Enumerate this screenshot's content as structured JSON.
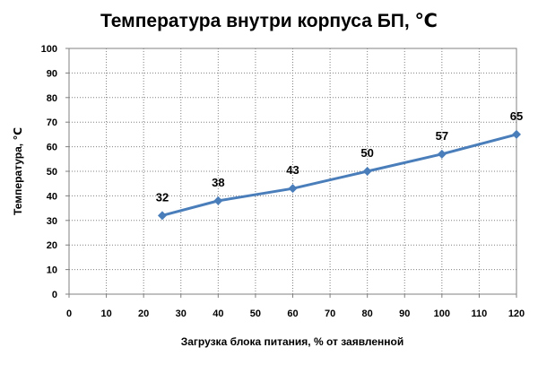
{
  "chart_data": {
    "type": "line",
    "title": "Температура внутри корпуса БП, ℃",
    "xlabel": "Загрузка блока питания, % от заявленной",
    "ylabel": "Температура, ℃",
    "xlim": [
      0,
      120
    ],
    "ylim": [
      0,
      100
    ],
    "x_ticks": [
      0,
      10,
      20,
      30,
      40,
      50,
      60,
      70,
      80,
      90,
      100,
      110,
      120
    ],
    "y_ticks": [
      0,
      10,
      20,
      30,
      40,
      50,
      60,
      70,
      80,
      90,
      100
    ],
    "grid": true,
    "legend": "none",
    "series": [
      {
        "color": "#4a7ebb",
        "x": [
          25,
          40,
          60,
          80,
          100,
          120
        ],
        "y": [
          32,
          38,
          43,
          50,
          57,
          65
        ],
        "labels": [
          "32",
          "38",
          "43",
          "50",
          "57",
          "65"
        ]
      }
    ]
  }
}
